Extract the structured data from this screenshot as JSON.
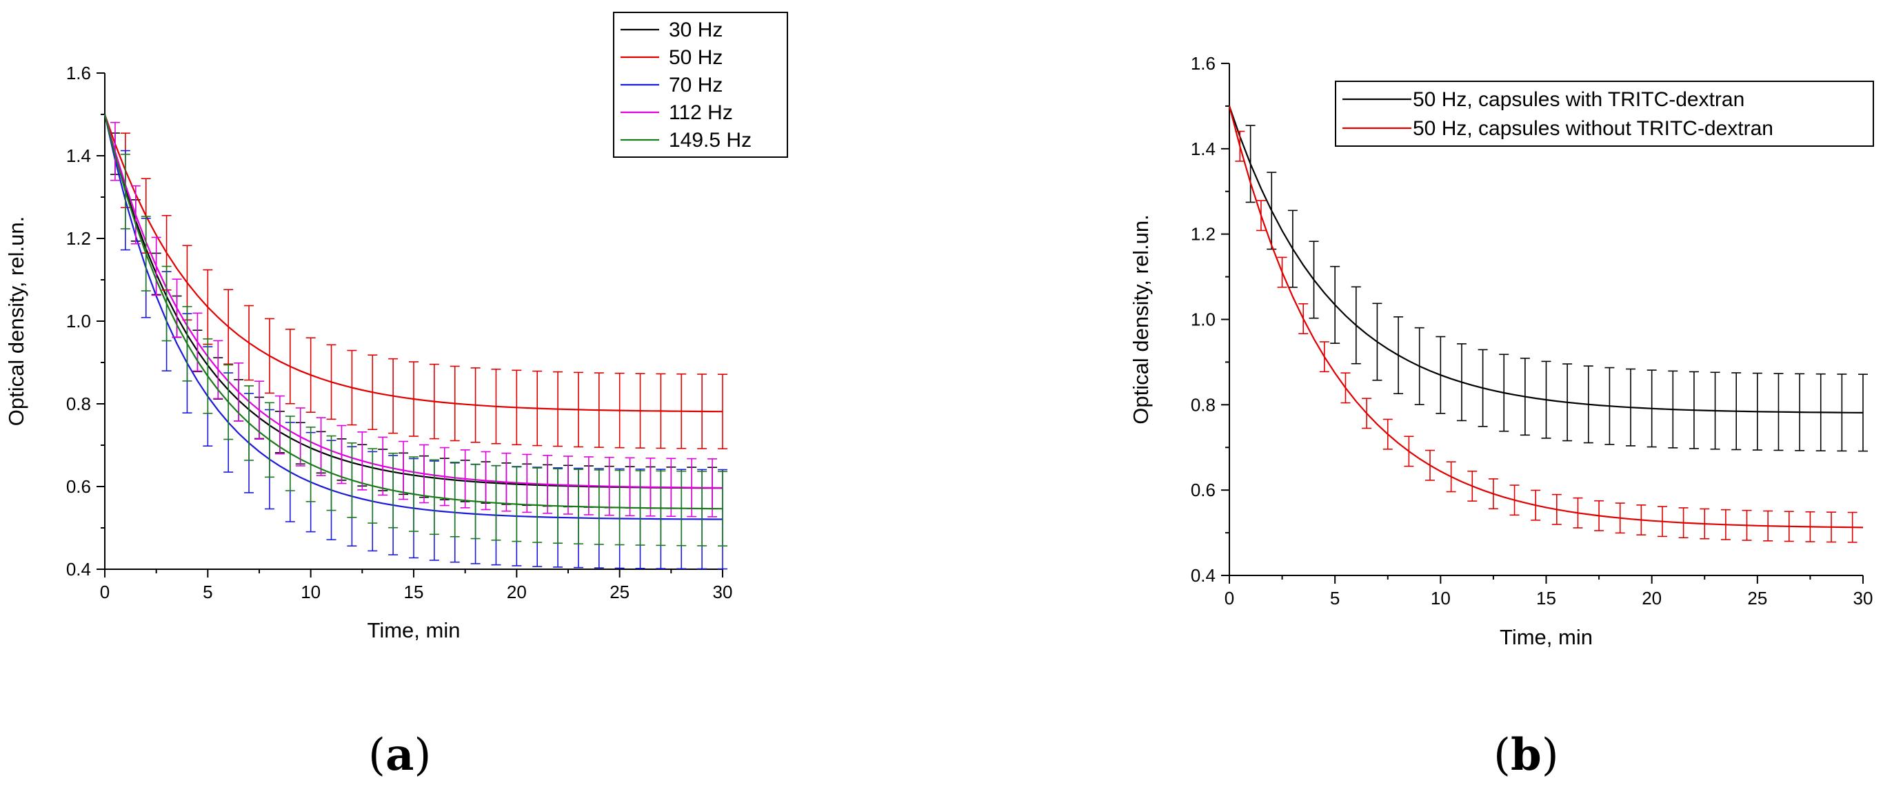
{
  "chart_data": [
    {
      "type": "line",
      "panel": "a",
      "xlabel": "Time, min",
      "ylabel": "Optical density, rel.un.",
      "xlim": [
        0,
        30
      ],
      "ylim": [
        0.4,
        1.6
      ],
      "x_ticks": [
        0,
        5,
        10,
        15,
        20,
        25,
        30
      ],
      "y_ticks": [
        0.4,
        0.6,
        0.8,
        1.0,
        1.2,
        1.4,
        1.6
      ],
      "legend_position": "top-right",
      "errorbars": true,
      "x": [
        0,
        0.5,
        1,
        1.5,
        2,
        2.5,
        3,
        3.5,
        4,
        4.5,
        5,
        5.5,
        6,
        6.5,
        7,
        7.5,
        8,
        8.5,
        9,
        9.5,
        10,
        10.5,
        11,
        11.5,
        12,
        12.5,
        13,
        13.5,
        14,
        14.5,
        15,
        15.5,
        16,
        16.5,
        17,
        17.5,
        18,
        18.5,
        19,
        19.5,
        20,
        20.5,
        21,
        21.5,
        22,
        22.5,
        23,
        23.5,
        24,
        24.5,
        25,
        25.5,
        26,
        26.5,
        27,
        27.5,
        28,
        28.5,
        29,
        29.5,
        30
      ],
      "series": [
        {
          "name": "30 Hz",
          "color": "#000000",
          "y0": 1.5,
          "yinf": 0.595,
          "tau": 4.5,
          "error": 0.05,
          "errorbar_x": [
            0.5,
            1.5,
            2.5,
            3.5,
            4.5,
            5.5,
            6.5,
            7.5,
            8.5,
            9.5,
            10.5,
            11.5,
            12.5,
            13.5,
            14.5,
            15.5,
            16.5,
            17.5,
            18.5,
            19.5,
            20.5,
            21.5,
            22.5,
            23.5,
            24.5,
            25.5,
            26.5,
            27.5,
            28.5,
            29.5
          ]
        },
        {
          "name": "50 Hz",
          "color": "#e00000",
          "y0": 1.5,
          "yinf": 0.78,
          "tau": 4.8,
          "error": 0.09,
          "errorbar_x": [
            1.0,
            2.0,
            3.0,
            4.0,
            5.0,
            6.0,
            7.0,
            8.0,
            9.0,
            10.0,
            11.0,
            12.0,
            13.0,
            14.0,
            15.0,
            16.0,
            17.0,
            18.0,
            19.0,
            20.0,
            21.0,
            22.0,
            23.0,
            24.0,
            25.0,
            26.0,
            27.0,
            28.0,
            29.0,
            30.0
          ]
        },
        {
          "name": "70 Hz",
          "color": "#1a1adc",
          "y0": 1.5,
          "yinf": 0.52,
          "tau": 4.2,
          "error": 0.12,
          "errorbar_x": [
            1.0,
            2.0,
            3.0,
            4.0,
            5.0,
            6.0,
            7.0,
            8.0,
            9.0,
            10.0,
            11.0,
            12.0,
            13.0,
            14.0,
            15.0,
            16.0,
            17.0,
            18.0,
            19.0,
            20.0,
            21.0,
            22.0,
            23.0,
            24.0,
            25.0,
            26.0,
            27.0,
            28.0,
            29.0,
            30.0
          ]
        },
        {
          "name": "112 Hz",
          "color": "#e000e0",
          "y0": 1.5,
          "yinf": 0.595,
          "tau": 4.8,
          "error": 0.07,
          "errorbar_x": [
            0.5,
            1.5,
            2.5,
            3.5,
            4.5,
            5.5,
            6.5,
            7.5,
            8.5,
            9.5,
            10.5,
            11.5,
            12.5,
            13.5,
            14.5,
            15.5,
            16.5,
            17.5,
            18.5,
            19.5,
            20.5,
            21.5,
            22.5,
            23.5,
            24.5,
            25.5,
            26.5,
            27.5,
            28.5,
            29.5
          ]
        },
        {
          "name": "149.5 Hz",
          "color": "#1a7a1a",
          "y0": 1.5,
          "yinf": 0.545,
          "tau": 4.6,
          "error": 0.09,
          "errorbar_x": [
            1.0,
            2.0,
            3.0,
            4.0,
            5.0,
            6.0,
            7.0,
            8.0,
            9.0,
            10.0,
            11.0,
            12.0,
            13.0,
            14.0,
            15.0,
            16.0,
            17.0,
            18.0,
            19.0,
            20.0,
            21.0,
            22.0,
            23.0,
            24.0,
            25.0,
            26.0,
            27.0,
            28.0,
            29.0,
            30.0
          ]
        }
      ]
    },
    {
      "type": "line",
      "panel": "b",
      "xlabel": "Time, min",
      "ylabel": "Optical density, rel.un.",
      "xlim": [
        0,
        30
      ],
      "ylim": [
        0.4,
        1.6
      ],
      "x_ticks": [
        0,
        5,
        10,
        15,
        20,
        25,
        30
      ],
      "y_ticks": [
        0.4,
        0.6,
        0.8,
        1.0,
        1.2,
        1.4,
        1.6
      ],
      "legend_position": "top-right",
      "errorbars": true,
      "x": [
        0,
        0.5,
        1,
        1.5,
        2,
        2.5,
        3,
        3.5,
        4,
        4.5,
        5,
        5.5,
        6,
        6.5,
        7,
        7.5,
        8,
        8.5,
        9,
        9.5,
        10,
        10.5,
        11,
        11.5,
        12,
        12.5,
        13,
        13.5,
        14,
        14.5,
        15,
        15.5,
        16,
        16.5,
        17,
        17.5,
        18,
        18.5,
        19,
        19.5,
        20,
        20.5,
        21,
        21.5,
        22,
        22.5,
        23,
        23.5,
        24,
        24.5,
        25,
        25.5,
        26,
        26.5,
        27,
        27.5,
        28,
        28.5,
        29,
        29.5,
        30
      ],
      "series": [
        {
          "name": "50 Hz, capsules with TRITC-dextran",
          "color": "#000000",
          "y0": 1.5,
          "yinf": 0.78,
          "tau": 4.8,
          "error": 0.09,
          "errorbar_x": [
            1.0,
            2.0,
            3.0,
            4.0,
            5.0,
            6.0,
            7.0,
            8.0,
            9.0,
            10.0,
            11.0,
            12.0,
            13.0,
            14.0,
            15.0,
            16.0,
            17.0,
            18.0,
            19.0,
            20.0,
            21.0,
            22.0,
            23.0,
            24.0,
            25.0,
            26.0,
            27.0,
            28.0,
            29.0,
            30.0
          ]
        },
        {
          "name": "50 Hz, capsules without TRITC-dextran",
          "color": "#e00000",
          "y0": 1.5,
          "yinf": 0.51,
          "tau": 5.0,
          "error": 0.035,
          "errorbar_x": [
            0.5,
            1.5,
            2.5,
            3.5,
            4.5,
            5.5,
            6.5,
            7.5,
            8.5,
            9.5,
            10.5,
            11.5,
            12.5,
            13.5,
            14.5,
            15.5,
            16.5,
            17.5,
            18.5,
            19.5,
            20.5,
            21.5,
            22.5,
            23.5,
            24.5,
            25.5,
            26.5,
            27.5,
            28.5,
            29.5
          ]
        }
      ]
    }
  ],
  "panel_labels": [
    "a",
    "b"
  ]
}
